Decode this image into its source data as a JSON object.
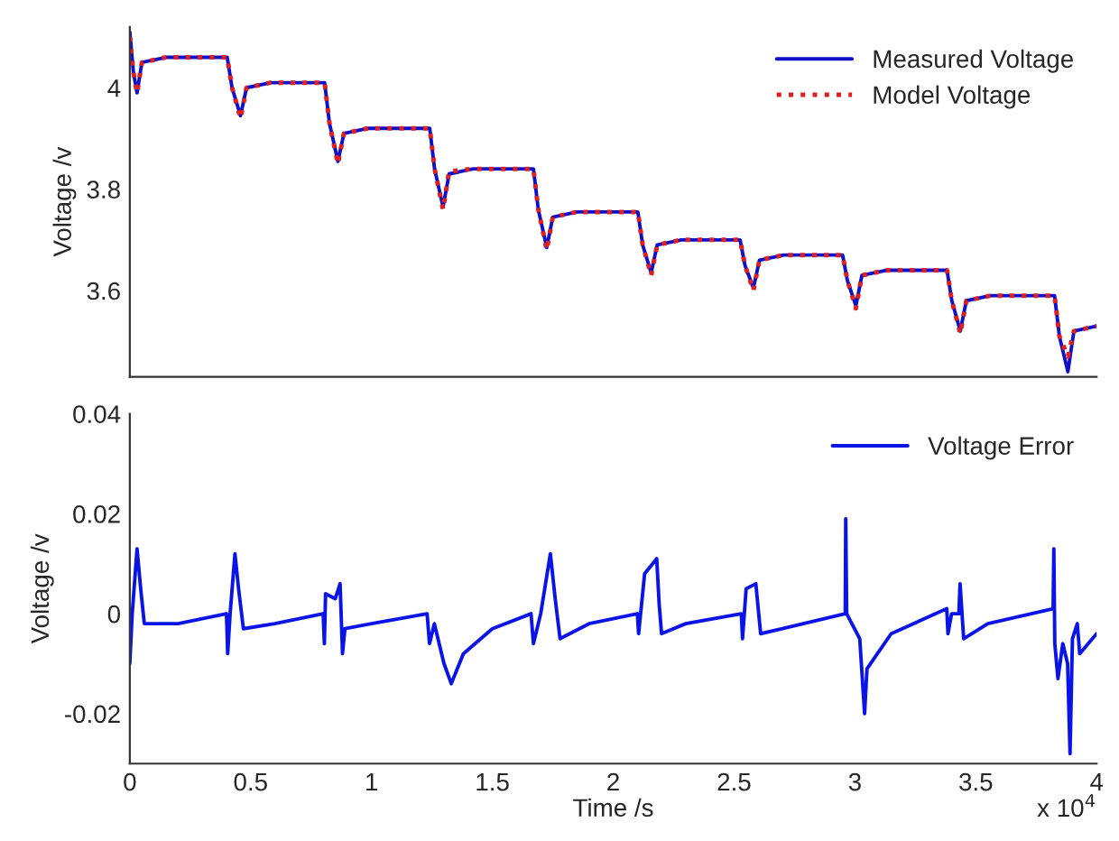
{
  "chart_data": [
    {
      "type": "line",
      "ylabel": "Voltage /v",
      "xlim": [
        0,
        4
      ],
      "ylim": [
        3.43,
        4.12
      ],
      "yticks": [
        3.6,
        3.8,
        4
      ],
      "xticks": [
        0,
        0.5,
        1,
        1.5,
        2,
        2.5,
        3,
        3.5,
        4
      ],
      "tick_labels": "y",
      "legend": "top right",
      "grid": false,
      "series": [
        {
          "name": "Measured Voltage",
          "color": "#1010c8",
          "line_style": "solid",
          "x": [
            0,
            0.015,
            0.03,
            0.05,
            0.15,
            0.403,
            0.423,
            0.458,
            0.483,
            0.583,
            0.806,
            0.826,
            0.861,
            0.886,
            0.986,
            1.241,
            1.261,
            1.296,
            1.321,
            1.421,
            1.67,
            1.69,
            1.725,
            1.75,
            1.85,
            2.102,
            2.122,
            2.157,
            2.182,
            2.282,
            2.525,
            2.545,
            2.58,
            2.605,
            2.705,
            2.949,
            2.969,
            3.004,
            3.029,
            3.129,
            3.381,
            3.401,
            3.436,
            3.461,
            3.561,
            3.826,
            3.846,
            3.881,
            3.906,
            4.0
          ],
          "values": [
            4.11,
            4.03,
            3.99,
            4.05,
            4.06,
            4.06,
            4.0,
            3.945,
            4.0,
            4.01,
            4.01,
            3.93,
            3.855,
            3.91,
            3.92,
            3.92,
            3.84,
            3.765,
            3.83,
            3.84,
            3.84,
            3.76,
            3.685,
            3.745,
            3.755,
            3.755,
            3.69,
            3.635,
            3.69,
            3.7,
            3.7,
            3.65,
            3.605,
            3.66,
            3.67,
            3.67,
            3.62,
            3.57,
            3.63,
            3.64,
            3.64,
            3.58,
            3.52,
            3.58,
            3.59,
            3.59,
            3.51,
            3.44,
            3.52,
            3.53
          ]
        },
        {
          "name": "Model Voltage",
          "color": "#e02020",
          "line_style": "dotted",
          "x": [
            0,
            0.015,
            0.03,
            0.05,
            0.15,
            0.403,
            0.423,
            0.458,
            0.483,
            0.583,
            0.806,
            0.826,
            0.861,
            0.886,
            0.986,
            1.241,
            1.261,
            1.296,
            1.321,
            1.421,
            1.67,
            1.69,
            1.725,
            1.75,
            1.85,
            2.102,
            2.122,
            2.157,
            2.182,
            2.282,
            2.525,
            2.545,
            2.58,
            2.605,
            2.705,
            2.949,
            2.969,
            3.004,
            3.029,
            3.129,
            3.381,
            3.401,
            3.436,
            3.461,
            3.561,
            3.826,
            3.846,
            3.881,
            3.906,
            4.0
          ],
          "values": [
            4.1,
            4.03,
            3.99,
            4.05,
            4.06,
            4.06,
            4.0,
            3.94,
            4.0,
            4.01,
            4.01,
            3.93,
            3.85,
            3.91,
            3.92,
            3.92,
            3.84,
            3.76,
            3.835,
            3.84,
            3.84,
            3.76,
            3.68,
            3.745,
            3.755,
            3.755,
            3.69,
            3.63,
            3.69,
            3.7,
            3.7,
            3.65,
            3.6,
            3.66,
            3.67,
            3.67,
            3.62,
            3.565,
            3.63,
            3.64,
            3.64,
            3.58,
            3.515,
            3.58,
            3.59,
            3.59,
            3.51,
            3.47,
            3.52,
            3.53
          ]
        }
      ]
    },
    {
      "type": "line",
      "xlabel": "Time /s",
      "ylabel": "Voltage /v",
      "xlim": [
        0,
        4
      ],
      "ylim": [
        -0.03,
        0.04
      ],
      "yticks": [
        -0.02,
        0,
        0.02,
        0.04
      ],
      "xticks": [
        0,
        0.5,
        1,
        1.5,
        2,
        2.5,
        3,
        3.5,
        4
      ],
      "legend": "top right",
      "grid": false,
      "annotations": [
        "x 10$^{4}$"
      ],
      "series": [
        {
          "name": "Voltage Error",
          "color": "#0a14e6",
          "line_style": "solid",
          "x": [
            0,
            0.01,
            0.03,
            0.045,
            0.06,
            0.2,
            0.4,
            0.405,
            0.415,
            0.435,
            0.45,
            0.47,
            0.6,
            0.8,
            0.805,
            0.81,
            0.85,
            0.87,
            0.88,
            0.89,
            1.0,
            1.23,
            1.24,
            1.26,
            1.3,
            1.33,
            1.38,
            1.5,
            1.66,
            1.67,
            1.7,
            1.74,
            1.76,
            1.78,
            1.9,
            2.1,
            2.105,
            2.13,
            2.18,
            2.19,
            2.2,
            2.3,
            2.53,
            2.535,
            2.55,
            2.59,
            2.61,
            2.7,
            2.96,
            2.962,
            2.966,
            3.02,
            3.04,
            3.05,
            3.15,
            3.38,
            3.385,
            3.4,
            3.43,
            3.435,
            3.45,
            3.55,
            3.82,
            3.823,
            3.827,
            3.84,
            3.86,
            3.88,
            3.89,
            3.9,
            3.92,
            3.93,
            4.0
          ],
          "values": [
            -0.01,
            0.0,
            0.013,
            0.005,
            -0.002,
            -0.002,
            0.0,
            -0.008,
            0.0,
            0.012,
            0.005,
            -0.003,
            -0.002,
            0.0,
            -0.006,
            0.004,
            0.003,
            0.006,
            -0.008,
            -0.003,
            -0.002,
            0.0,
            -0.006,
            -0.002,
            -0.01,
            -0.014,
            -0.008,
            -0.003,
            0.0,
            -0.006,
            0.0,
            0.012,
            0.003,
            -0.005,
            -0.002,
            0.0,
            -0.004,
            0.008,
            0.011,
            0.002,
            -0.004,
            -0.002,
            0.0,
            -0.005,
            0.005,
            0.006,
            -0.004,
            -0.003,
            0.0,
            0.019,
            0.0,
            -0.005,
            -0.02,
            -0.011,
            -0.004,
            0.001,
            -0.004,
            0.0,
            0.0,
            0.006,
            -0.005,
            -0.002,
            0.001,
            0.013,
            -0.006,
            -0.013,
            -0.006,
            -0.01,
            -0.028,
            -0.005,
            -0.002,
            -0.008,
            -0.004
          ]
        }
      ]
    }
  ]
}
